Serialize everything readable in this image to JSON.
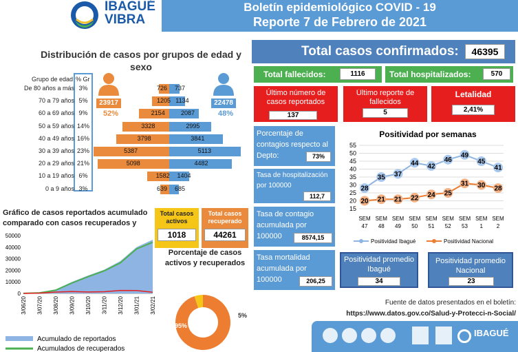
{
  "header": {
    "logo_top": "IBAGUÉ",
    "logo_bottom": "VIBRA",
    "title_line1": "Boletín epidemiológico COVID - 19",
    "title_line2": "Reporte 7 de Febrero de 2021"
  },
  "totals": {
    "confirmed_label": "Total casos confirmados:",
    "confirmed_value": "46395",
    "deaths_label": "Total fallecidos:",
    "deaths_value": "1116",
    "hosp_label": "Total hospitalizados:",
    "hosp_value": "570",
    "last_cases_label": "Último número de casos reportados",
    "last_cases_value": "137",
    "last_deaths_label": "Último reporte de fallecidos",
    "last_deaths_value": "5",
    "lethality_label": "Letalidad",
    "lethality_value": "2,41%"
  },
  "indicators": {
    "contagion_pct_label": "Porcentaje de contagios respecto al Depto:",
    "contagion_pct_value": "73%",
    "hosp_rate_label": "Tasa de hospitalización por 100000",
    "hosp_rate_value": "112,7",
    "contagion_rate_label": "Tasa de contagio acumulada por 100000",
    "contagion_rate_value": "8574,15",
    "mortality_rate_label": "Tasa mortalidad acumulada por 100000",
    "mortality_rate_value": "206,25",
    "avg_ibague_label": "Positividad promedio Ibagué",
    "avg_ibague_value": "34",
    "avg_nacional_label": "Positividad promedio Nacional",
    "avg_nacional_value": "23"
  },
  "active": {
    "active_label": "Total casos activos",
    "active_value": "1018",
    "recovered_label": "Total casos recuperado",
    "recovered_value": "44261"
  },
  "source": {
    "line1": "Fuente de datos presentados en el boletín:",
    "line2": "https://www.datos.gov.co/Salud-y-Protecci-n-Social/"
  },
  "colors": {
    "orange": "#e98a3c",
    "blue": "#5b9bd5",
    "red": "#e61e1e",
    "green": "#4caf50",
    "dark_blue": "#4f81bd"
  },
  "chart_data": [
    {
      "type": "bar",
      "title": "Distribución de casos por grupos de edad y sexo",
      "column_headers": [
        "Grupo de edad",
        "% Gr"
      ],
      "categories": [
        "De 80 años a más",
        "70 a 79 años",
        "60 a 69 años",
        "50 a 59 años",
        "40 a 49 años",
        "30 a 39 años",
        "20 a 29 años",
        "10 a 19 años",
        "0 a 9 años"
      ],
      "percent": [
        "3%",
        "5%",
        "9%",
        "14%",
        "16%",
        "23%",
        "21%",
        "6%",
        "3%"
      ],
      "series": [
        {
          "name": "Mujeres",
          "total": "23917",
          "share": "52%",
          "values": [
            726,
            1205,
            2154,
            3328,
            3798,
            5387,
            5098,
            1582,
            639
          ]
        },
        {
          "name": "Hombres",
          "total": "22478",
          "share": "48%",
          "values": [
            737,
            1134,
            2087,
            2995,
            3841,
            5113,
            4482,
            1404,
            685
          ]
        }
      ]
    },
    {
      "type": "area",
      "title": "Gráfico de casos reportados acumulado comparado con casos recuperados y",
      "categories": [
        "3/06/20",
        "3/07/20",
        "3/08/20",
        "3/09/20",
        "3/10/20",
        "3/11/20",
        "3/12/20",
        "3/01/21",
        "3/02/21"
      ],
      "y_ticks": [
        "0",
        "10000",
        "20000",
        "30000",
        "40000",
        "50000"
      ],
      "ylim": [
        0,
        50000
      ],
      "series": [
        {
          "name": "Acumulado de reportados",
          "values": [
            200,
            800,
            3500,
            10000,
            15500,
            20500,
            28000,
            40000,
            46395
          ]
        },
        {
          "name": "Acumulados de recuperados",
          "values": [
            100,
            500,
            2800,
            9000,
            14500,
            19500,
            26500,
            38500,
            44261
          ]
        },
        {
          "name": "",
          "values": [
            50,
            300,
            1200,
            1600,
            1300,
            1500,
            2600,
            2500,
            1018
          ]
        }
      ]
    },
    {
      "type": "pie",
      "title": "Porcentaje de casos activos y recuperados",
      "slices": [
        {
          "label": "95%",
          "value": 95
        },
        {
          "label": "5%",
          "value": 5
        }
      ]
    },
    {
      "type": "line",
      "title": "Positividad por semanas",
      "categories": [
        "SEM 47",
        "SEM 48",
        "SEM 49",
        "SEM 50",
        "SEM 51",
        "SEM 52",
        "SEM 53",
        "SEM 1",
        "SEM 2"
      ],
      "y_ticks": [
        "15",
        "20",
        "25",
        "30",
        "35",
        "40",
        "45",
        "50",
        "55"
      ],
      "ylim": [
        15,
        55
      ],
      "series": [
        {
          "name": "Positividad Ibagué",
          "values": [
            28,
            35,
            37,
            44,
            42,
            46,
            49,
            45,
            41
          ]
        },
        {
          "name": "Positividad Nacional",
          "values": [
            20,
            21,
            21,
            22,
            24,
            25,
            31,
            30,
            28
          ]
        }
      ]
    }
  ]
}
